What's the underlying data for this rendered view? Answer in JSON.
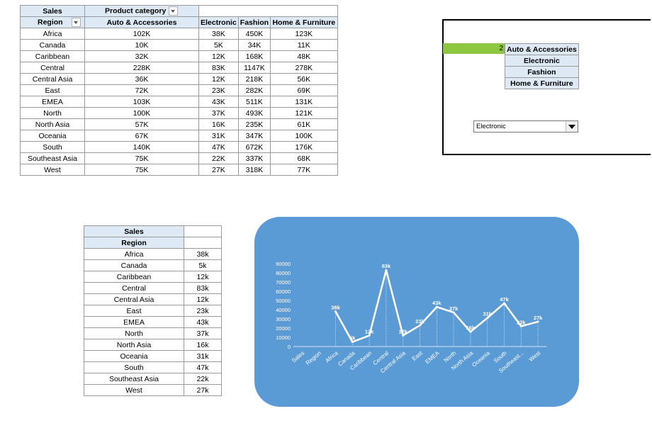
{
  "pivot": {
    "corner_label": "Sales",
    "column_field": "Product category",
    "row_field": "Region",
    "columns": [
      "Auto & Accessories",
      "Electronic",
      "Fashion",
      "Home & Furniture"
    ],
    "rows": [
      {
        "region": "Africa",
        "values": [
          "102K",
          "38K",
          "450K",
          "123K"
        ]
      },
      {
        "region": "Canada",
        "values": [
          "10K",
          "5K",
          "34K",
          "11K"
        ]
      },
      {
        "region": "Caribbean",
        "values": [
          "32K",
          "12K",
          "168K",
          "48K"
        ]
      },
      {
        "region": "Central",
        "values": [
          "228K",
          "83K",
          "1147K",
          "278K"
        ]
      },
      {
        "region": "Central Asia",
        "values": [
          "36K",
          "12K",
          "218K",
          "56K"
        ]
      },
      {
        "region": "East",
        "values": [
          "72K",
          "23K",
          "282K",
          "69K"
        ]
      },
      {
        "region": "EMEA",
        "values": [
          "103K",
          "43K",
          "511K",
          "131K"
        ]
      },
      {
        "region": "North",
        "values": [
          "100K",
          "37K",
          "493K",
          "121K"
        ]
      },
      {
        "region": "North Asia",
        "values": [
          "57K",
          "16K",
          "235K",
          "61K"
        ]
      },
      {
        "region": "Oceania",
        "values": [
          "67K",
          "31K",
          "347K",
          "100K"
        ]
      },
      {
        "region": "South",
        "values": [
          "140K",
          "47K",
          "672K",
          "176K"
        ]
      },
      {
        "region": "Southeast Asia",
        "values": [
          "75K",
          "22K",
          "337K",
          "68K"
        ]
      },
      {
        "region": "West",
        "values": [
          "75K",
          "27K",
          "318K",
          "77K"
        ]
      }
    ]
  },
  "selector": {
    "index": "2",
    "categories": [
      "Auto & Accessories",
      "Electronic",
      "Fashion",
      "Home & Furniture"
    ],
    "combo_value": "Electronic"
  },
  "subtable": {
    "title": "Sales",
    "field": "Region",
    "rows": [
      {
        "region": "Africa",
        "value": "38k"
      },
      {
        "region": "Canada",
        "value": "5k"
      },
      {
        "region": "Caribbean",
        "value": "12k"
      },
      {
        "region": "Central",
        "value": "83k"
      },
      {
        "region": "Central Asia",
        "value": "12k"
      },
      {
        "region": "East",
        "value": "23k"
      },
      {
        "region": "EMEA",
        "value": "43k"
      },
      {
        "region": "North",
        "value": "37k"
      },
      {
        "region": "North Asia",
        "value": "16k"
      },
      {
        "region": "Oceania",
        "value": "31k"
      },
      {
        "region": "South",
        "value": "47k"
      },
      {
        "region": "Southeast Asia",
        "value": "22k"
      },
      {
        "region": "West",
        "value": "27k"
      }
    ]
  },
  "chart_data": {
    "type": "line",
    "categories": [
      "Sales",
      "Region",
      "Africa",
      "Canada",
      "Caribbean",
      "Central",
      "Central Asia",
      "East",
      "EMEA",
      "North",
      "North Asia",
      "Oceania",
      "South",
      "Southeast...",
      "West"
    ],
    "values": [
      null,
      null,
      38000,
      5000,
      12000,
      83000,
      12000,
      23000,
      43000,
      37000,
      16000,
      31000,
      47000,
      22000,
      27000
    ],
    "data_labels": [
      "",
      "",
      "38k",
      "5k",
      "12k",
      "83k",
      "12k",
      "23k",
      "43k",
      "37k",
      "16k",
      "31k",
      "47k",
      "22k",
      "27k"
    ],
    "yticks": [
      0,
      10000,
      20000,
      30000,
      40000,
      50000,
      60000,
      70000,
      80000,
      90000
    ],
    "ylim": [
      0,
      90000
    ],
    "title": "",
    "xlabel": "",
    "ylabel": "",
    "line_color": "#ffffff",
    "background": "#5b9bd5"
  }
}
